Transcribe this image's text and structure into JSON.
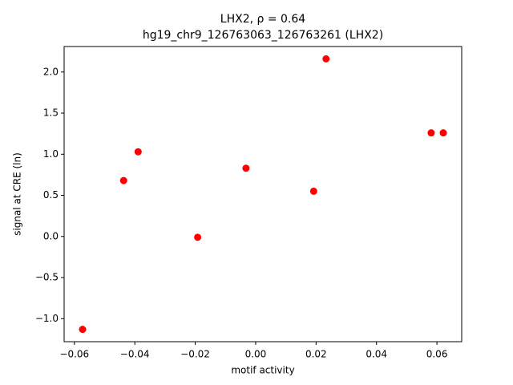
{
  "chart_data": {
    "type": "scatter",
    "title": "LHX2, ρ = 0.64",
    "subtitle": "hg19_chr9_126763063_126763261 (LHX2)",
    "x_label": "motif activity",
    "y_label": "signal at CRE (ln)",
    "color": "#ff0000",
    "x": [
      -0.0573,
      -0.0437,
      -0.0389,
      -0.0192,
      -0.0032,
      0.0192,
      0.0233,
      0.0581,
      0.0621
    ],
    "values": [
      -1.13,
      0.68,
      1.03,
      -0.01,
      0.83,
      0.55,
      2.16,
      1.26,
      1.26
    ],
    "xlim": [
      -0.0634,
      0.0682
    ],
    "ylim": [
      -1.28,
      2.31
    ],
    "xticks": [
      {
        "value": -0.06,
        "label": "−0.06"
      },
      {
        "value": -0.04,
        "label": "−0.04"
      },
      {
        "value": -0.02,
        "label": "−0.02"
      },
      {
        "value": 0,
        "label": "0.00"
      },
      0.02,
      0.04,
      0.06
    ],
    "yticks": [
      {
        "value": -1,
        "label": "−1.0"
      },
      {
        "value": -0.5,
        "label": "−0.5"
      },
      {
        "value": 0,
        "label": "0.0"
      },
      0.5,
      {
        "value": 1,
        "label": "1.0"
      },
      1.5,
      {
        "value": 2,
        "label": "2.0"
      }
    ]
  }
}
